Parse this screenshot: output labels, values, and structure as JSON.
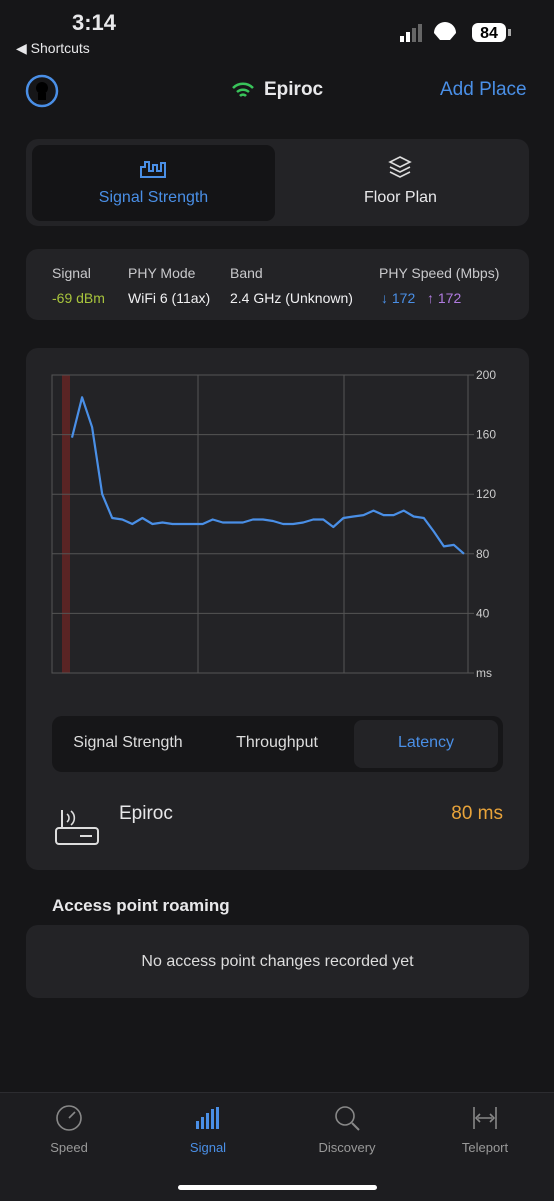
{
  "status_bar": {
    "time": "3:14",
    "back": "◀ Shortcuts",
    "battery": "84"
  },
  "header": {
    "title": "Epiroc",
    "action": "Add Place"
  },
  "tabs": [
    "Signal Strength",
    "Floor Plan"
  ],
  "info": {
    "labels": [
      "Signal",
      "PHY Mode",
      "Band",
      "PHY Speed (Mbps)"
    ],
    "values": [
      "-69 dBm",
      "WiFi 6 (11ax)",
      "2.4 GHz (Unknown)"
    ],
    "down": "↓ 172",
    "up": "↑ 172"
  },
  "chart_data": {
    "type": "line",
    "series": [
      {
        "color": "#4a8fe6",
        "values": [
          158,
          185,
          165,
          120,
          104,
          103,
          100,
          104,
          100,
          101,
          100,
          100,
          100,
          100,
          103,
          101,
          101,
          101,
          103,
          103,
          102,
          100,
          100,
          101,
          103,
          103,
          98,
          104,
          105,
          106,
          109,
          106,
          106,
          109,
          105,
          104,
          95,
          85,
          86,
          80
        ]
      }
    ],
    "ylim": [
      0,
      200
    ],
    "yticks": [
      {
        "value": 0,
        "label": "ms"
      },
      40,
      80,
      120,
      160,
      200
    ],
    "grid": true
  },
  "metric_tabs": [
    "Signal Strength",
    "Throughput",
    "Latency"
  ],
  "device": {
    "name": "Epiroc",
    "latency": "80 ms"
  },
  "roaming": {
    "title": "Access point roaming",
    "empty": "No access point changes recorded yet"
  },
  "nav": [
    "Speed",
    "Signal",
    "Discovery",
    "Teleport"
  ]
}
